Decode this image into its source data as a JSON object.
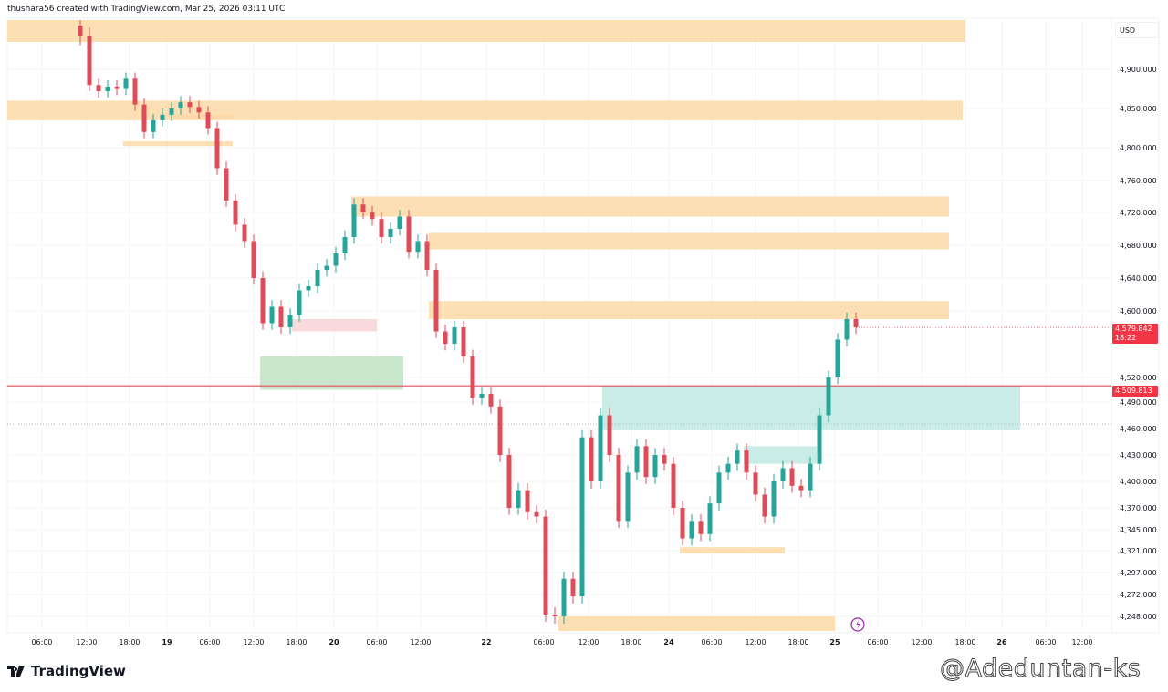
{
  "header": {
    "credit": "thushara56 created with TradingView.com, Mar 25, 2026 03:11 UTC"
  },
  "price_axis": {
    "currency": "USD"
  },
  "footer": {
    "brand": "TradingView"
  },
  "watermark": "@Adeduntan-ks",
  "colors": {
    "up": "#26a69a",
    "down": "#e04b5a",
    "zone_orange": "#fbd9a6",
    "zone_green": "#bfe3c3",
    "zone_pink": "#f8d3d6",
    "zone_cyan": "#bfe9e2",
    "line_red": "#e04b5a",
    "tag_red": "#f23645"
  },
  "chart_data": {
    "type": "candlestick",
    "xlabel": "",
    "ylabel": "",
    "ylim": [
      4232,
      4945
    ],
    "grid": true,
    "y_ticks": [
      "4,900.000",
      "4,850.000",
      "4,800.000",
      "4,760.000",
      "4,720.000",
      "4,680.000",
      "4,640.000",
      "4,600.000",
      "4,520.000",
      "4,490.000",
      "4,460.000",
      "4,430.000",
      "4,400.000",
      "4,370.000",
      "4,345.000",
      "4,321.000",
      "4,297.000",
      "4,272.000",
      "4,248.000"
    ],
    "x_ticks": [
      {
        "label": "06:00",
        "bold": false
      },
      {
        "label": "12:00",
        "bold": false
      },
      {
        "label": "18:00",
        "bold": false
      },
      {
        "label": "19",
        "bold": true
      },
      {
        "label": "06:00",
        "bold": false
      },
      {
        "label": "12:00",
        "bold": false
      },
      {
        "label": "18:00",
        "bold": false
      },
      {
        "label": "20",
        "bold": true
      },
      {
        "label": "06:00",
        "bold": false
      },
      {
        "label": "12:00",
        "bold": false
      },
      {
        "label": "22",
        "bold": true
      },
      {
        "label": "06:00",
        "bold": false
      },
      {
        "label": "12:00",
        "bold": false
      },
      {
        "label": "18:00",
        "bold": false
      },
      {
        "label": "24",
        "bold": true
      },
      {
        "label": "06:00",
        "bold": false
      },
      {
        "label": "12:00",
        "bold": false
      },
      {
        "label": "18:00",
        "bold": false
      },
      {
        "label": "25",
        "bold": true
      },
      {
        "label": "06:00",
        "bold": false
      },
      {
        "label": "12:00",
        "bold": false
      },
      {
        "label": "18:00",
        "bold": false
      },
      {
        "label": "26",
        "bold": true
      },
      {
        "label": "06:00",
        "bold": false
      },
      {
        "label": "12:00",
        "bold": false
      }
    ],
    "close": [
      4930,
      4880,
      4872,
      4878,
      4875,
      4888,
      4855,
      4820,
      4835,
      4842,
      4850,
      4858,
      4852,
      4845,
      4825,
      4775,
      4735,
      4705,
      4685,
      4640,
      4585,
      4605,
      4580,
      4595,
      4625,
      4630,
      4650,
      4655,
      4670,
      4690,
      4730,
      4720,
      4712,
      4690,
      4700,
      4715,
      4672,
      4685,
      4650,
      4575,
      4560,
      4580,
      4545,
      4495,
      4500,
      4485,
      4430,
      4370,
      4390,
      4365,
      4360,
      4250,
      4248,
      4290,
      4270,
      4450,
      4400,
      4475,
      4430,
      4355,
      4410,
      4440,
      4405,
      4430,
      4420,
      4370,
      4335,
      4355,
      4340,
      4375,
      4410,
      4420,
      4435,
      4410,
      4385,
      4360,
      4400,
      4415,
      4395,
      4390,
      4420,
      4475,
      4520,
      4565,
      4590,
      4580
    ],
    "last_price": {
      "value": "4,579.842",
      "countdown": "18:22"
    },
    "line_price": {
      "value": "4,509.813"
    },
    "zones": [
      {
        "top": 4945,
        "bottom": 4925,
        "color": "orange"
      },
      {
        "top": 4860,
        "bottom": 4835,
        "color": "orange"
      },
      {
        "top": 4842,
        "bottom": 4836,
        "color": "orange"
      },
      {
        "top": 4808,
        "bottom": 4802,
        "color": "orange"
      },
      {
        "top": 4740,
        "bottom": 4715,
        "color": "orange"
      },
      {
        "top": 4695,
        "bottom": 4675,
        "color": "orange"
      },
      {
        "top": 4612,
        "bottom": 4590,
        "color": "orange"
      },
      {
        "top": 4590,
        "bottom": 4575,
        "color": "pink"
      },
      {
        "top": 4545,
        "bottom": 4505,
        "color": "green"
      },
      {
        "top": 4510,
        "bottom": 4458,
        "color": "cyan"
      },
      {
        "top": 4440,
        "bottom": 4420,
        "color": "cyan"
      },
      {
        "top": 4325,
        "bottom": 4318,
        "color": "orange"
      },
      {
        "top": 4248,
        "bottom": 4232,
        "color": "orange"
      }
    ]
  }
}
